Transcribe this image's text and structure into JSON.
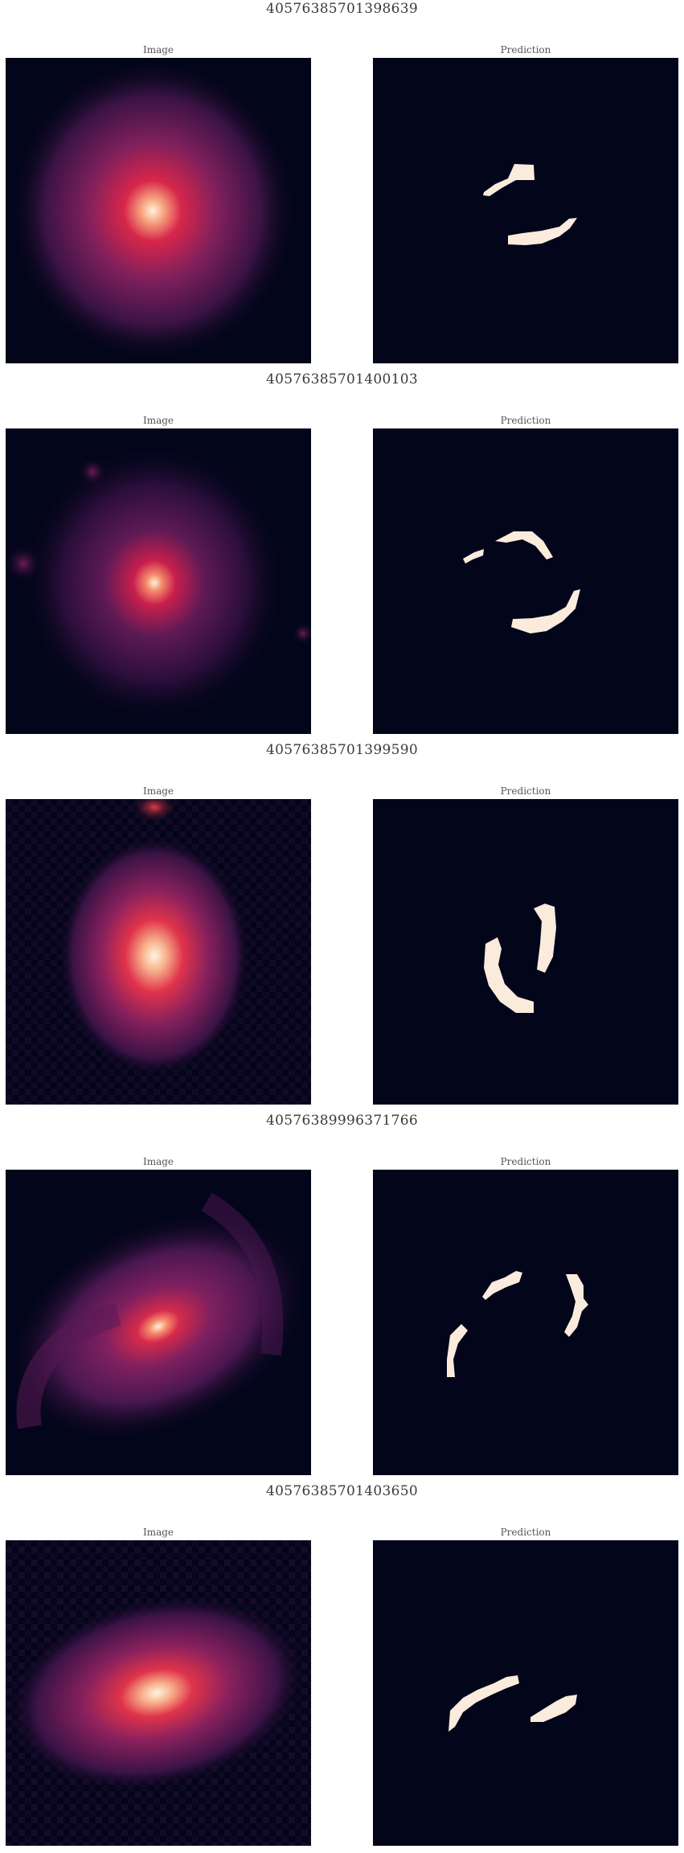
{
  "figure": {
    "image_label": "Image",
    "prediction_label": "Prediction",
    "colors": {
      "background": "#03051a",
      "mask": "#faebdd",
      "glow_core": "#fbe0c8",
      "glow_mid": "#e13342",
      "glow_outer": "#701f57"
    },
    "rows": [
      {
        "id": "40576385701398639",
        "galaxy": "spiral-bright-core",
        "mask": "two-arcs-upper-left-lower-right"
      },
      {
        "id": "40576385701400103",
        "galaxy": "compact-core-with-companions",
        "mask": "upper-arc-and-lower-arc"
      },
      {
        "id": "40576385701399590",
        "galaxy": "noisy-bright-core",
        "mask": "vertical-crescent-pair"
      },
      {
        "id": "40576389996371766",
        "galaxy": "inclined-spiral",
        "mask": "ring-segments-four"
      },
      {
        "id": "40576385701403650",
        "galaxy": "noisy-elongated-core",
        "mask": "two-diagonal-arcs"
      }
    ]
  }
}
